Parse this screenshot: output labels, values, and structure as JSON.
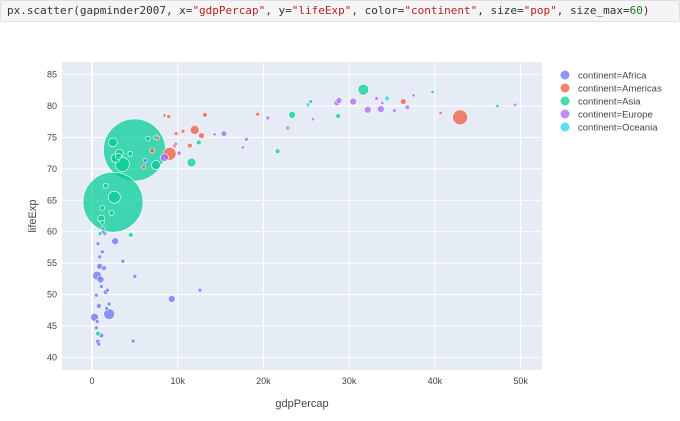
{
  "code": {
    "func": "px.scatter(gapminder2007, x=",
    "x_arg": "\"gdpPercap\"",
    "mid1": ", y=",
    "y_arg": "\"lifeExp\"",
    "mid2": ", color=",
    "color_arg": "\"continent\"",
    "mid3": ", size=",
    "size_arg": "\"pop\"",
    "mid4": ", size_max=",
    "size_max": "60",
    "end": ")"
  },
  "chart_data": {
    "type": "scatter",
    "xlabel": "gdpPercap",
    "ylabel": "lifeExp",
    "xlim": [
      -3500,
      52500
    ],
    "ylim": [
      38,
      87
    ],
    "xticks": [
      0,
      10000,
      20000,
      30000,
      40000,
      50000
    ],
    "xtick_labels": [
      "0",
      "10k",
      "20k",
      "30k",
      "40k",
      "50k"
    ],
    "yticks": [
      40,
      45,
      50,
      55,
      60,
      65,
      70,
      75,
      80,
      85
    ],
    "ytick_labels": [
      "40",
      "45",
      "50",
      "55",
      "60",
      "65",
      "70",
      "75",
      "80",
      "85"
    ],
    "grid": true,
    "legend_position": "top-right",
    "size_max": 60,
    "series": [
      {
        "name": "continent=Africa",
        "color": "#636efa",
        "points": [
          {
            "x": 300,
            "y": 46.4,
            "s": 6
          },
          {
            "x": 600,
            "y": 53.0,
            "s": 7
          },
          {
            "x": 2000,
            "y": 46.9,
            "s": 9
          },
          {
            "x": 9300,
            "y": 49.3,
            "s": 5
          },
          {
            "x": 2700,
            "y": 58.5,
            "s": 5
          },
          {
            "x": 1000,
            "y": 52.4,
            "s": 5
          },
          {
            "x": 900,
            "y": 54.5,
            "s": 4
          },
          {
            "x": 1400,
            "y": 54.2,
            "s": 3
          },
          {
            "x": 1600,
            "y": 50.4,
            "s": 3
          },
          {
            "x": 800,
            "y": 48.2,
            "s": 3
          },
          {
            "x": 700,
            "y": 42.5,
            "s": 3
          },
          {
            "x": 1100,
            "y": 43.5,
            "s": 3
          },
          {
            "x": 4800,
            "y": 42.6,
            "s": 2
          },
          {
            "x": 500,
            "y": 44.7,
            "s": 2
          },
          {
            "x": 1200,
            "y": 56.8,
            "s": 2
          },
          {
            "x": 1500,
            "y": 59.7,
            "s": 2
          },
          {
            "x": 700,
            "y": 58.1,
            "s": 2
          },
          {
            "x": 3600,
            "y": 55.3,
            "s": 2
          },
          {
            "x": 1700,
            "y": 47.8,
            "s": 2
          },
          {
            "x": 500,
            "y": 49.9,
            "s": 2
          },
          {
            "x": 1100,
            "y": 51.3,
            "s": 2
          },
          {
            "x": 600,
            "y": 45.7,
            "s": 2
          },
          {
            "x": 1800,
            "y": 50.7,
            "s": 2
          },
          {
            "x": 6200,
            "y": 71.3,
            "s": 2
          },
          {
            "x": 1300,
            "y": 60.0,
            "s": 2
          },
          {
            "x": 900,
            "y": 56.0,
            "s": 2
          },
          {
            "x": 2000,
            "y": 48.5,
            "s": 2
          },
          {
            "x": 800,
            "y": 42.1,
            "s": 2
          },
          {
            "x": 5000,
            "y": 52.9,
            "s": 2
          },
          {
            "x": 12600,
            "y": 50.7,
            "s": 2
          }
        ]
      },
      {
        "name": "continent=Americas",
        "color": "#ef553b",
        "points": [
          {
            "x": 42951,
            "y": 78.2,
            "s": 13
          },
          {
            "x": 9065,
            "y": 72.4,
            "s": 11
          },
          {
            "x": 11978,
            "y": 76.2,
            "s": 7
          },
          {
            "x": 36319,
            "y": 80.7,
            "s": 4
          },
          {
            "x": 12779,
            "y": 75.3,
            "s": 4
          },
          {
            "x": 13172,
            "y": 78.6,
            "s": 3
          },
          {
            "x": 11416,
            "y": 73.7,
            "s": 3
          },
          {
            "x": 7007,
            "y": 72.9,
            "s": 3
          },
          {
            "x": 9645,
            "y": 73.7,
            "s": 2
          },
          {
            "x": 8948,
            "y": 78.3,
            "s": 2
          },
          {
            "x": 10611,
            "y": 76.0,
            "s": 2
          },
          {
            "x": 19328,
            "y": 78.7,
            "s": 2
          },
          {
            "x": 7670,
            "y": 74.9,
            "s": 2
          },
          {
            "x": 9809,
            "y": 75.6,
            "s": 2
          },
          {
            "x": 6025,
            "y": 70.3,
            "s": 2
          },
          {
            "x": 40676,
            "y": 78.9,
            "s": 1.5
          },
          {
            "x": 8458,
            "y": 78.5,
            "s": 1.5
          }
        ]
      },
      {
        "name": "continent=Asia",
        "color": "#00cc96",
        "points": [
          {
            "x": 4959,
            "y": 73.0,
            "s": 60
          },
          {
            "x": 2452,
            "y": 64.7,
            "s": 58
          },
          {
            "x": 3541,
            "y": 70.7,
            "s": 12
          },
          {
            "x": 2605,
            "y": 65.5,
            "s": 10
          },
          {
            "x": 31656,
            "y": 82.6,
            "s": 9
          },
          {
            "x": 7458,
            "y": 70.6,
            "s": 7
          },
          {
            "x": 2749,
            "y": 71.7,
            "s": 7
          },
          {
            "x": 3190,
            "y": 72.5,
            "s": 6
          },
          {
            "x": 11606,
            "y": 71.0,
            "s": 7
          },
          {
            "x": 1091,
            "y": 62.1,
            "s": 5
          },
          {
            "x": 2441,
            "y": 74.2,
            "s": 7
          },
          {
            "x": 23348,
            "y": 78.6,
            "s": 5
          },
          {
            "x": 4471,
            "y": 72.4,
            "s": 3
          },
          {
            "x": 4520,
            "y": 59.5,
            "s": 3
          },
          {
            "x": 3095,
            "y": 72.0,
            "s": 4
          },
          {
            "x": 1593,
            "y": 67.3,
            "s": 3
          },
          {
            "x": 7458,
            "y": 75.0,
            "s": 3
          },
          {
            "x": 12451,
            "y": 74.2,
            "s": 3
          },
          {
            "x": 1200,
            "y": 63.8,
            "s": 3
          },
          {
            "x": 2280,
            "y": 63.0,
            "s": 3
          },
          {
            "x": 21654,
            "y": 72.8,
            "s": 3
          },
          {
            "x": 6500,
            "y": 74.8,
            "s": 3
          },
          {
            "x": 944,
            "y": 59.7,
            "s": 2
          },
          {
            "x": 1200,
            "y": 61.5,
            "s": 2
          },
          {
            "x": 25523,
            "y": 80.7,
            "s": 2
          },
          {
            "x": 28718,
            "y": 78.4,
            "s": 3
          },
          {
            "x": 47307,
            "y": 80.0,
            "s": 1.5
          },
          {
            "x": 39725,
            "y": 82.2,
            "s": 1.5
          },
          {
            "x": 700,
            "y": 43.8,
            "s": 3
          },
          {
            "x": 1300,
            "y": 60.5,
            "s": 2
          }
        ]
      },
      {
        "name": "continent=Europe",
        "color": "#ab63fa",
        "points": [
          {
            "x": 32170,
            "y": 79.4,
            "s": 5
          },
          {
            "x": 30470,
            "y": 80.7,
            "s": 5
          },
          {
            "x": 33692,
            "y": 79.5,
            "s": 5
          },
          {
            "x": 28570,
            "y": 80.5,
            "s": 4
          },
          {
            "x": 28821,
            "y": 80.9,
            "s": 4
          },
          {
            "x": 8458,
            "y": 71.8,
            "s": 6
          },
          {
            "x": 15389,
            "y": 75.6,
            "s": 4
          },
          {
            "x": 10160,
            "y": 72.5,
            "s": 2.5
          },
          {
            "x": 36797,
            "y": 79.8,
            "s": 2.5
          },
          {
            "x": 35278,
            "y": 79.3,
            "s": 2
          },
          {
            "x": 33207,
            "y": 81.2,
            "s": 2
          },
          {
            "x": 18009,
            "y": 74.7,
            "s": 2
          },
          {
            "x": 20509,
            "y": 78.1,
            "s": 2
          },
          {
            "x": 22833,
            "y": 76.5,
            "s": 2
          },
          {
            "x": 37506,
            "y": 81.7,
            "s": 1.5
          },
          {
            "x": 49357,
            "y": 80.2,
            "s": 1.5
          },
          {
            "x": 33860,
            "y": 80.5,
            "s": 1.5
          },
          {
            "x": 17600,
            "y": 73.4,
            "s": 1.5
          },
          {
            "x": 14300,
            "y": 75.5,
            "s": 1.5
          },
          {
            "x": 9787,
            "y": 74.0,
            "s": 1.5
          },
          {
            "x": 25768,
            "y": 77.9,
            "s": 1.5
          }
        ]
      },
      {
        "name": "continent=Oceania",
        "color": "#19d3f3",
        "points": [
          {
            "x": 34435,
            "y": 81.2,
            "s": 3
          },
          {
            "x": 25185,
            "y": 80.2,
            "s": 2
          }
        ]
      }
    ]
  }
}
